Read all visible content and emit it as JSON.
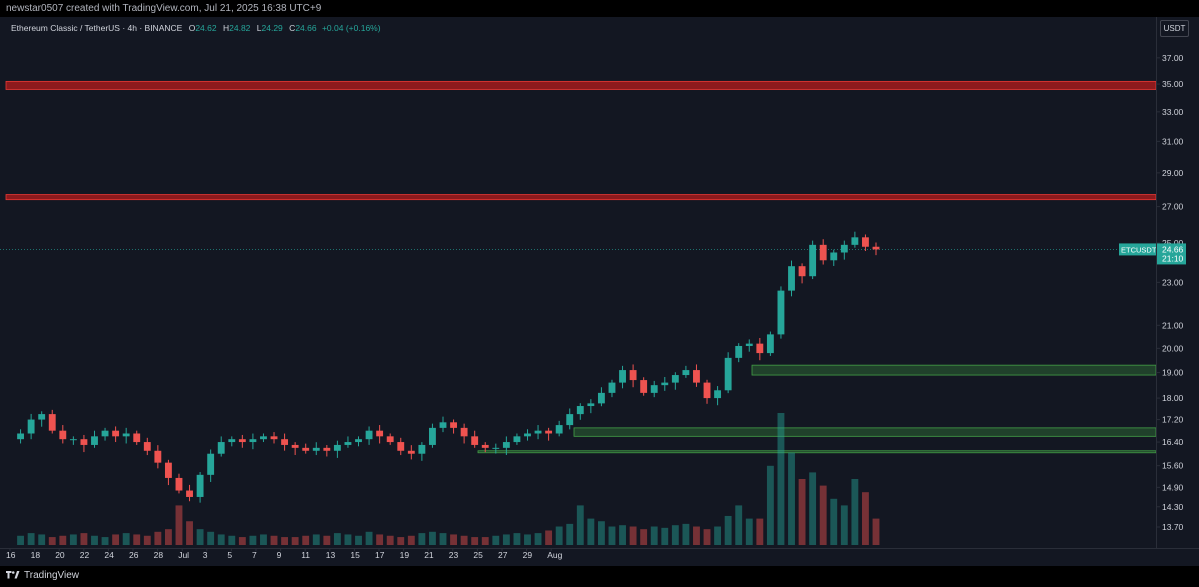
{
  "header": {
    "caption": "newstar0507 created with TradingView.com, Jul 21, 2025 16:38 UTC+9"
  },
  "legend": {
    "symbol": "Ethereum Classic / TetherUS · 4h · BINANCE",
    "o_label": "O",
    "o_value": "24.62",
    "h_label": "H",
    "h_value": "24.82",
    "l_label": "L",
    "l_value": "24.29",
    "c_label": "C",
    "c_value": "24.66",
    "change": "+0.04 (+0.16%)"
  },
  "currency_button": "USDT",
  "footer": {
    "brand": "TradingView"
  },
  "colors": {
    "up": "#26a69a",
    "down": "#ef5350",
    "resistance": "#b71c1c",
    "support": "#388e3c",
    "background": "#131722"
  },
  "chart_data": {
    "type": "candlestick",
    "symbol": "ETCUSDT",
    "timeframe": "4h",
    "x_ticks": [
      "16",
      "18",
      "20",
      "22",
      "24",
      "26",
      "28",
      "Jul",
      "3",
      "5",
      "7",
      "9",
      "11",
      "13",
      "15",
      "17",
      "19",
      "21",
      "23",
      "25",
      "27",
      "29",
      "Aug"
    ],
    "y_ticks": [
      "37.00",
      "35.00",
      "33.00",
      "31.00",
      "29.00",
      "27.00",
      "25.00",
      "23.00",
      "21.00",
      "20.00",
      "19.00",
      "18.00",
      "17.20",
      "16.40",
      "15.60",
      "14.90",
      "14.30",
      "13.70"
    ],
    "scale": "log",
    "ylim": [
      13.3,
      40.0
    ],
    "last_price": {
      "label": "ETCUSDT",
      "price": "24.66",
      "countdown": "21:10"
    },
    "resistance_zones": [
      {
        "low": 34.6,
        "high": 35.2
      },
      {
        "low": 27.4,
        "high": 27.7
      }
    ],
    "support_zones": [
      {
        "low": 18.9,
        "high": 19.3
      },
      {
        "low": 16.6,
        "high": 16.9
      },
      {
        "low": 16.05,
        "high": 16.1
      }
    ],
    "price_path": [
      16.5,
      16.7,
      17.2,
      17.4,
      16.8,
      16.5,
      16.5,
      16.3,
      16.6,
      16.8,
      16.6,
      16.7,
      16.4,
      16.1,
      15.7,
      15.2,
      14.8,
      14.6,
      15.3,
      16.0,
      16.4,
      16.5,
      16.4,
      16.5,
      16.6,
      16.5,
      16.3,
      16.2,
      16.1,
      16.2,
      16.1,
      16.3,
      16.4,
      16.5,
      16.8,
      16.6,
      16.4,
      16.1,
      16.0,
      16.3,
      16.9,
      17.1,
      16.9,
      16.6,
      16.3,
      16.2,
      16.2,
      16.4,
      16.6,
      16.7,
      16.8,
      16.7,
      17.0,
      17.4,
      17.7,
      17.8,
      18.2,
      18.6,
      19.1,
      18.7,
      18.2,
      18.5,
      18.6,
      18.9,
      19.1,
      18.6,
      18.0,
      18.3,
      19.6,
      20.1,
      20.2,
      19.8,
      20.6,
      22.6,
      23.8,
      23.3,
      24.9,
      24.1,
      24.5,
      24.9,
      25.3,
      24.8,
      24.66
    ],
    "volume_profile": [
      0.08,
      0.07,
      0.09,
      0.08,
      0.06,
      0.07,
      0.08,
      0.09,
      0.07,
      0.06,
      0.08,
      0.09,
      0.08,
      0.07,
      0.1,
      0.12,
      0.3,
      0.18,
      0.12,
      0.1,
      0.08,
      0.07,
      0.06,
      0.07,
      0.08,
      0.07,
      0.06,
      0.06,
      0.07,
      0.08,
      0.07,
      0.09,
      0.08,
      0.07,
      0.1,
      0.08,
      0.07,
      0.06,
      0.07,
      0.09,
      0.1,
      0.09,
      0.08,
      0.07,
      0.06,
      0.06,
      0.07,
      0.08,
      0.09,
      0.08,
      0.09,
      0.11,
      0.14,
      0.16,
      0.3,
      0.2,
      0.18,
      0.14,
      0.15,
      0.14,
      0.12,
      0.14,
      0.13,
      0.15,
      0.16,
      0.14,
      0.12,
      0.14,
      0.22,
      0.3,
      0.2,
      0.2,
      0.6,
      1.0,
      0.7,
      0.5,
      0.55,
      0.45,
      0.35,
      0.3,
      0.5,
      0.4,
      0.2
    ]
  }
}
